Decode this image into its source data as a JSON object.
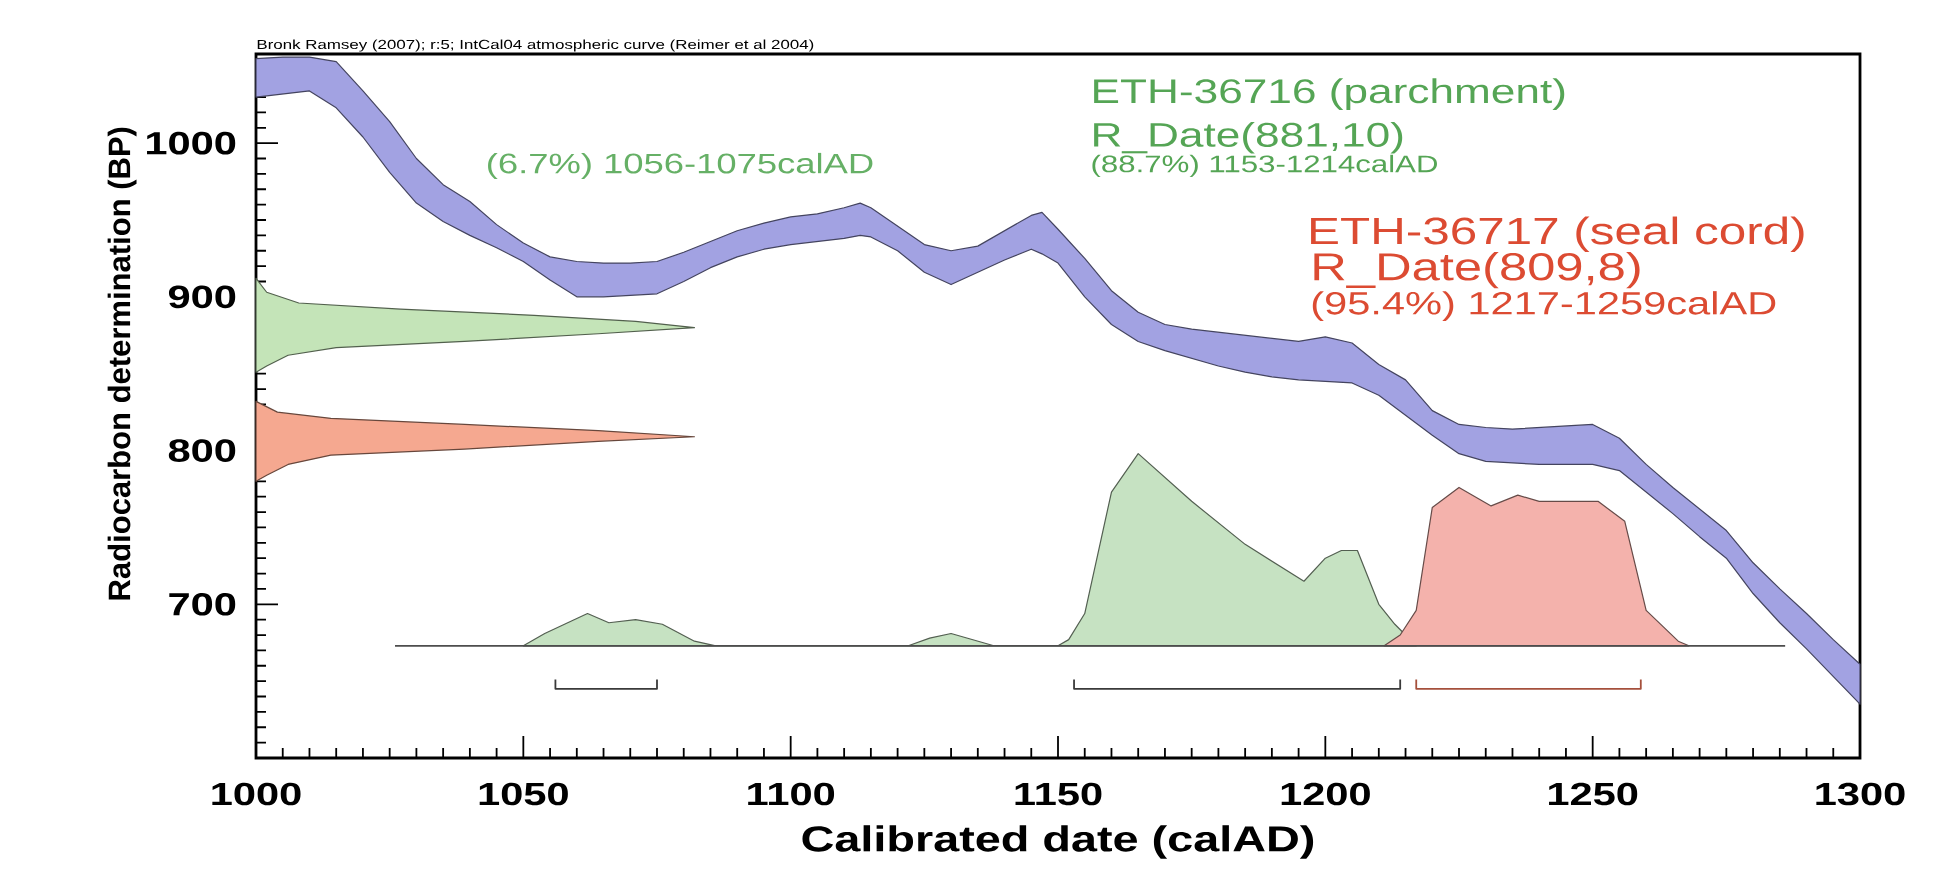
{
  "chart_data": {
    "type": "area",
    "xlabel": "Calibrated date (calAD)",
    "ylabel": "Radiocarbon determination (BP)",
    "annotations": [
      "Bronk Ramsey (2007); r:5; IntCal04 atmospheric curve (Reimer et al 2004)",
      "ETH-36716 (parchment)",
      "R_Date(881,10)",
      "(88.7%) 1153-1214calAD",
      "(6.7%) 1056-1075calAD",
      "ETH-36717 (seal cord)",
      "R_Date(809,8)",
      "(95.4%) 1217-1259calAD"
    ],
    "xlim": [
      1000,
      1300
    ],
    "ylim": [
      600,
      1058
    ],
    "xticks": [
      1000,
      {
        "value": 1005,
        "label": null
      },
      {
        "value": 1010,
        "label": null
      },
      {
        "value": 1015,
        "label": null
      },
      {
        "value": 1020,
        "label": null
      },
      {
        "value": 1025,
        "label": null
      },
      {
        "value": 1030,
        "label": null
      },
      {
        "value": 1035,
        "label": null
      },
      {
        "value": 1040,
        "label": null
      },
      {
        "value": 1045,
        "label": null
      },
      1050,
      {
        "value": 1055,
        "label": null
      },
      {
        "value": 1060,
        "label": null
      },
      {
        "value": 1065,
        "label": null
      },
      {
        "value": 1070,
        "label": null
      },
      {
        "value": 1075,
        "label": null
      },
      {
        "value": 1080,
        "label": null
      },
      {
        "value": 1085,
        "label": null
      },
      {
        "value": 1090,
        "label": null
      },
      {
        "value": 1095,
        "label": null
      },
      1100,
      {
        "value": 1105,
        "label": null
      },
      {
        "value": 1110,
        "label": null
      },
      {
        "value": 1115,
        "label": null
      },
      {
        "value": 1120,
        "label": null
      },
      {
        "value": 1125,
        "label": null
      },
      {
        "value": 1130,
        "label": null
      },
      {
        "value": 1135,
        "label": null
      },
      {
        "value": 1140,
        "label": null
      },
      {
        "value": 1145,
        "label": null
      },
      1150,
      {
        "value": 1155,
        "label": null
      },
      {
        "value": 1160,
        "label": null
      },
      {
        "value": 1165,
        "label": null
      },
      {
        "value": 1170,
        "label": null
      },
      {
        "value": 1175,
        "label": null
      },
      {
        "value": 1180,
        "label": null
      },
      {
        "value": 1185,
        "label": null
      },
      {
        "value": 1190,
        "label": null
      },
      {
        "value": 1195,
        "label": null
      },
      1200,
      {
        "value": 1205,
        "label": null
      },
      {
        "value": 1210,
        "label": null
      },
      {
        "value": 1215,
        "label": null
      },
      {
        "value": 1220,
        "label": null
      },
      {
        "value": 1225,
        "label": null
      },
      {
        "value": 1230,
        "label": null
      },
      {
        "value": 1235,
        "label": null
      },
      {
        "value": 1240,
        "label": null
      },
      {
        "value": 1245,
        "label": null
      },
      1250,
      {
        "value": 1255,
        "label": null
      },
      {
        "value": 1260,
        "label": null
      },
      {
        "value": 1265,
        "label": null
      },
      {
        "value": 1270,
        "label": null
      },
      {
        "value": 1275,
        "label": null
      },
      {
        "value": 1280,
        "label": null
      },
      {
        "value": 1285,
        "label": null
      },
      {
        "value": 1290,
        "label": null
      },
      {
        "value": 1295,
        "label": null
      },
      1300
    ],
    "yticks": [
      {
        "value": 610,
        "label": null
      },
      {
        "value": 620,
        "label": null
      },
      {
        "value": 630,
        "label": null
      },
      {
        "value": 640,
        "label": null
      },
      {
        "value": 650,
        "label": null
      },
      {
        "value": 660,
        "label": null
      },
      {
        "value": 670,
        "label": null
      },
      {
        "value": 680,
        "label": null
      },
      {
        "value": 690,
        "label": null
      },
      700,
      {
        "value": 710,
        "label": null
      },
      {
        "value": 720,
        "label": null
      },
      {
        "value": 730,
        "label": null
      },
      {
        "value": 740,
        "label": null
      },
      {
        "value": 750,
        "label": null
      },
      {
        "value": 760,
        "label": null
      },
      {
        "value": 770,
        "label": null
      },
      {
        "value": 780,
        "label": null
      },
      {
        "value": 790,
        "label": null
      },
      800,
      {
        "value": 810,
        "label": null
      },
      {
        "value": 820,
        "label": null
      },
      {
        "value": 830,
        "label": null
      },
      {
        "value": 840,
        "label": null
      },
      {
        "value": 850,
        "label": null
      },
      {
        "value": 860,
        "label": null
      },
      {
        "value": 870,
        "label": null
      },
      {
        "value": 880,
        "label": null
      },
      {
        "value": 890,
        "label": null
      },
      900,
      {
        "value": 910,
        "label": null
      },
      {
        "value": 920,
        "label": null
      },
      {
        "value": 930,
        "label": null
      },
      {
        "value": 940,
        "label": null
      },
      {
        "value": 950,
        "label": null
      },
      {
        "value": 960,
        "label": null
      },
      {
        "value": 970,
        "label": null
      },
      {
        "value": 980,
        "label": null
      },
      {
        "value": 990,
        "label": null
      },
      1000,
      {
        "value": 1010,
        "label": null
      },
      {
        "value": 1020,
        "label": null
      },
      {
        "value": 1030,
        "label": null
      },
      {
        "value": 1040,
        "label": null
      },
      {
        "value": 1050,
        "label": null
      }
    ],
    "series": [
      {
        "color": "#a2a2e2",
        "x": [
          1000,
          1005,
          1010,
          1015,
          1020,
          1025,
          1030,
          1035,
          1040,
          1045,
          1050,
          1055,
          1060,
          1065,
          1070,
          1075,
          1080,
          1090,
          1095,
          1100,
          1105,
          1110,
          1113,
          1115,
          1125,
          1130,
          1135,
          1145,
          1147,
          1150,
          1155,
          1160,
          1165,
          1170,
          1175,
          1195,
          1200,
          1205,
          1210,
          1215,
          1220,
          1225,
          1230,
          1235,
          1250,
          1255,
          1260,
          1265,
          1275,
          1280,
          1285,
          1290,
          1295,
          1300,
          1300,
          1290,
          1285,
          1280,
          1275,
          1270,
          1265,
          1255,
          1250,
          1240,
          1230,
          1225,
          1220,
          1210,
          1205,
          1195,
          1190,
          1185,
          1180,
          1170,
          1165,
          1160,
          1155,
          1150,
          1147,
          1145,
          1140,
          1130,
          1125,
          1120,
          1115,
          1113,
          1110,
          1100,
          1095,
          1090,
          1085,
          1080,
          1075,
          1065,
          1060,
          1055,
          1050,
          1045,
          1040,
          1035,
          1030,
          1025,
          1020,
          1015,
          1010,
          1000
        ],
        "values": [
          1055,
          1056,
          1056,
          1053,
          1034,
          1014,
          990,
          973,
          962,
          947,
          935,
          926,
          923,
          922,
          922,
          923,
          929,
          943,
          948,
          952,
          954,
          958,
          961,
          958,
          934,
          930,
          933,
          953,
          955,
          944,
          925,
          904,
          890,
          882,
          879,
          871,
          874,
          870,
          856,
          846,
          826,
          817,
          815,
          814,
          817,
          808,
          791,
          776,
          748,
          727,
          710,
          694,
          677,
          661,
          635,
          671,
          688,
          707,
          730,
          744,
          759,
          787,
          791,
          791,
          793,
          798,
          810,
          836,
          844,
          846,
          848,
          851,
          855,
          865,
          871,
          882,
          900,
          922,
          928,
          931,
          924,
          908,
          916,
          930,
          939,
          940,
          938,
          934,
          931,
          926,
          919,
          910,
          902,
          900,
          900,
          911,
          923,
          932,
          940,
          949,
          961,
          981,
          1004,
          1023,
          1034,
          1030
        ]
      },
      {
        "color": "#c4e4b8",
        "x": [
          1000,
          1002,
          1008,
          1027,
          1052,
          1071,
          1082,
          1064,
          1039,
          1015,
          1006,
          1002,
          1000
        ],
        "values": [
          912,
          903,
          896,
          892,
          888,
          884,
          880,
          876,
          871,
          867,
          862,
          855,
          851
        ]
      },
      {
        "color": "#f5a890",
        "x": [
          1000,
          1004,
          1014,
          1039,
          1064,
          1082,
          1064,
          1039,
          1014,
          1006,
          1002,
          1000
        ],
        "values": [
          832,
          825,
          821,
          817,
          813,
          809,
          806,
          801,
          797,
          791,
          784,
          780
        ]
      },
      {
        "color": "#c6e2c2",
        "x": [
          1050,
          1054,
          1062,
          1066,
          1071,
          1076,
          1082,
          1086,
          1122,
          1126,
          1130,
          1134,
          1138,
          1150,
          1152,
          1155,
          1160,
          1165,
          1175,
          1185,
          1196,
          1200,
          1203,
          1206,
          1210,
          1213,
          1217
        ],
        "values": [
          673,
          681,
          694,
          688,
          690,
          687,
          676,
          673,
          673,
          678,
          681,
          677,
          673,
          673,
          677,
          694,
          773,
          798,
          767,
          739,
          715,
          730,
          735,
          735,
          700,
          687,
          673
        ]
      },
      {
        "color": "#f4b2ac",
        "x": [
          1211,
          1214,
          1217,
          1220,
          1225,
          1231,
          1236,
          1240,
          1251,
          1256,
          1260,
          1266,
          1268
        ],
        "values": [
          673,
          680,
          696,
          763,
          776,
          764,
          771,
          767,
          767,
          754,
          696,
          676,
          673
        ]
      },
      {
        "type": "line",
        "color": "#4d4d4d",
        "x": [
          1026,
          1286
        ],
        "values": [
          673,
          673
        ]
      },
      {
        "type": "line",
        "color": "#3a3a3a",
        "x": [
          1056,
          1056,
          1075,
          1075
        ],
        "values": [
          651,
          645,
          645,
          651
        ]
      },
      {
        "type": "line",
        "color": "#3a3a3a",
        "x": [
          1153,
          1153,
          1214,
          1214
        ],
        "values": [
          651,
          645,
          645,
          651
        ]
      },
      {
        "type": "line",
        "color": "#a5503c",
        "x": [
          1217,
          1217,
          1259,
          1259
        ],
        "values": [
          651,
          645,
          645,
          651
        ]
      }
    ]
  }
}
